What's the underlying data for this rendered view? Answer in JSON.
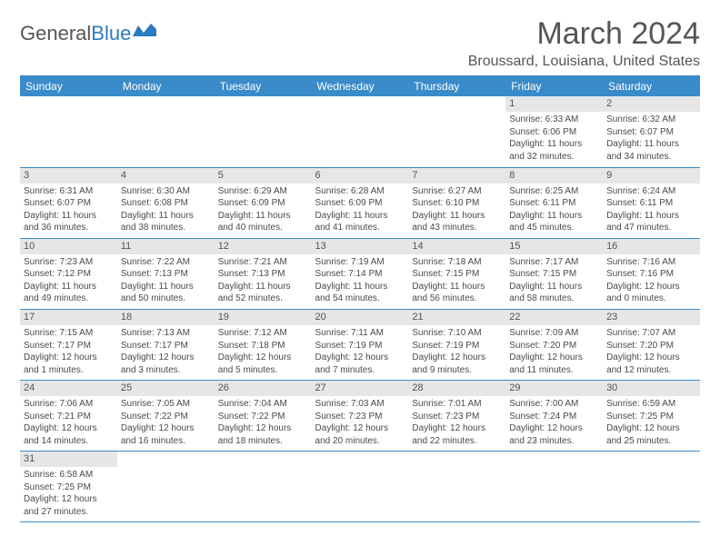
{
  "logo": {
    "text1": "General",
    "text2": "Blue"
  },
  "title": "March 2024",
  "location": "Broussard, Louisiana, United States",
  "weekdays": [
    "Sunday",
    "Monday",
    "Tuesday",
    "Wednesday",
    "Thursday",
    "Friday",
    "Saturday"
  ],
  "colors": {
    "header_bg": "#3a8bc9",
    "header_text": "#ffffff",
    "daynum_bg": "#e6e6e6",
    "border": "#3a8bc9",
    "text": "#4a4a4a"
  },
  "grid": [
    [
      null,
      null,
      null,
      null,
      null,
      {
        "n": "1",
        "sunrise": "6:33 AM",
        "sunset": "6:06 PM",
        "dh": "11",
        "dm": "32"
      },
      {
        "n": "2",
        "sunrise": "6:32 AM",
        "sunset": "6:07 PM",
        "dh": "11",
        "dm": "34"
      }
    ],
    [
      {
        "n": "3",
        "sunrise": "6:31 AM",
        "sunset": "6:07 PM",
        "dh": "11",
        "dm": "36"
      },
      {
        "n": "4",
        "sunrise": "6:30 AM",
        "sunset": "6:08 PM",
        "dh": "11",
        "dm": "38"
      },
      {
        "n": "5",
        "sunrise": "6:29 AM",
        "sunset": "6:09 PM",
        "dh": "11",
        "dm": "40"
      },
      {
        "n": "6",
        "sunrise": "6:28 AM",
        "sunset": "6:09 PM",
        "dh": "11",
        "dm": "41"
      },
      {
        "n": "7",
        "sunrise": "6:27 AM",
        "sunset": "6:10 PM",
        "dh": "11",
        "dm": "43"
      },
      {
        "n": "8",
        "sunrise": "6:25 AM",
        "sunset": "6:11 PM",
        "dh": "11",
        "dm": "45"
      },
      {
        "n": "9",
        "sunrise": "6:24 AM",
        "sunset": "6:11 PM",
        "dh": "11",
        "dm": "47"
      }
    ],
    [
      {
        "n": "10",
        "sunrise": "7:23 AM",
        "sunset": "7:12 PM",
        "dh": "11",
        "dm": "49"
      },
      {
        "n": "11",
        "sunrise": "7:22 AM",
        "sunset": "7:13 PM",
        "dh": "11",
        "dm": "50"
      },
      {
        "n": "12",
        "sunrise": "7:21 AM",
        "sunset": "7:13 PM",
        "dh": "11",
        "dm": "52"
      },
      {
        "n": "13",
        "sunrise": "7:19 AM",
        "sunset": "7:14 PM",
        "dh": "11",
        "dm": "54"
      },
      {
        "n": "14",
        "sunrise": "7:18 AM",
        "sunset": "7:15 PM",
        "dh": "11",
        "dm": "56"
      },
      {
        "n": "15",
        "sunrise": "7:17 AM",
        "sunset": "7:15 PM",
        "dh": "11",
        "dm": "58"
      },
      {
        "n": "16",
        "sunrise": "7:16 AM",
        "sunset": "7:16 PM",
        "dh": "12",
        "dm": "0"
      }
    ],
    [
      {
        "n": "17",
        "sunrise": "7:15 AM",
        "sunset": "7:17 PM",
        "dh": "12",
        "dm": "1"
      },
      {
        "n": "18",
        "sunrise": "7:13 AM",
        "sunset": "7:17 PM",
        "dh": "12",
        "dm": "3"
      },
      {
        "n": "19",
        "sunrise": "7:12 AM",
        "sunset": "7:18 PM",
        "dh": "12",
        "dm": "5"
      },
      {
        "n": "20",
        "sunrise": "7:11 AM",
        "sunset": "7:19 PM",
        "dh": "12",
        "dm": "7"
      },
      {
        "n": "21",
        "sunrise": "7:10 AM",
        "sunset": "7:19 PM",
        "dh": "12",
        "dm": "9"
      },
      {
        "n": "22",
        "sunrise": "7:09 AM",
        "sunset": "7:20 PM",
        "dh": "12",
        "dm": "11"
      },
      {
        "n": "23",
        "sunrise": "7:07 AM",
        "sunset": "7:20 PM",
        "dh": "12",
        "dm": "12"
      }
    ],
    [
      {
        "n": "24",
        "sunrise": "7:06 AM",
        "sunset": "7:21 PM",
        "dh": "12",
        "dm": "14"
      },
      {
        "n": "25",
        "sunrise": "7:05 AM",
        "sunset": "7:22 PM",
        "dh": "12",
        "dm": "16"
      },
      {
        "n": "26",
        "sunrise": "7:04 AM",
        "sunset": "7:22 PM",
        "dh": "12",
        "dm": "18"
      },
      {
        "n": "27",
        "sunrise": "7:03 AM",
        "sunset": "7:23 PM",
        "dh": "12",
        "dm": "20"
      },
      {
        "n": "28",
        "sunrise": "7:01 AM",
        "sunset": "7:23 PM",
        "dh": "12",
        "dm": "22"
      },
      {
        "n": "29",
        "sunrise": "7:00 AM",
        "sunset": "7:24 PM",
        "dh": "12",
        "dm": "23"
      },
      {
        "n": "30",
        "sunrise": "6:59 AM",
        "sunset": "7:25 PM",
        "dh": "12",
        "dm": "25"
      }
    ],
    [
      {
        "n": "31",
        "sunrise": "6:58 AM",
        "sunset": "7:25 PM",
        "dh": "12",
        "dm": "27"
      },
      null,
      null,
      null,
      null,
      null,
      null
    ]
  ]
}
